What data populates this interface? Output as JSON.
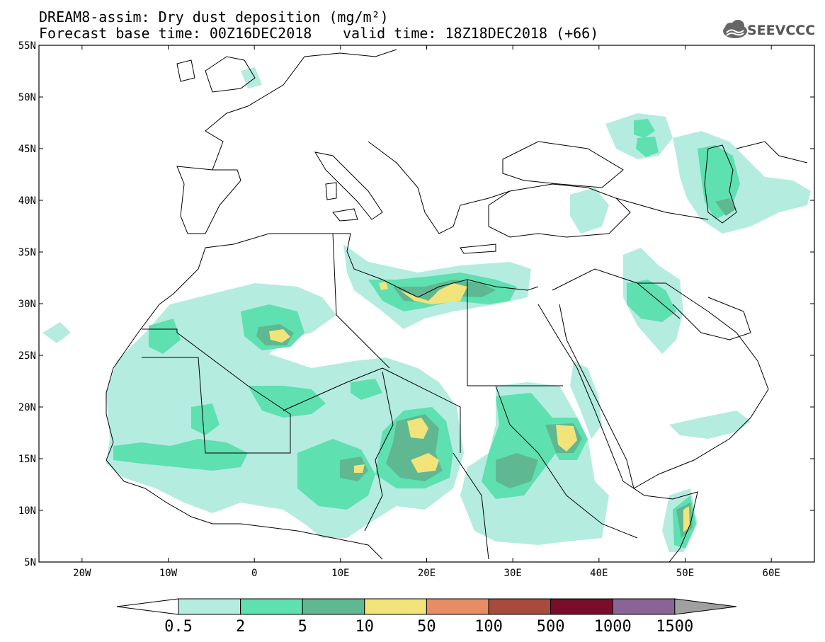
{
  "header": {
    "title_line1": "DREAM8-assim: Dry dust deposition (mg/m²)",
    "title_line2": "Forecast base time: 00Z16DEC2018",
    "title_line3": "valid time: 18Z18DEC2018 (+66)",
    "logo_text": "SEEVCCC"
  },
  "map": {
    "lat_labels": [
      "55N",
      "50N",
      "45N",
      "40N",
      "35N",
      "30N",
      "25N",
      "20N",
      "15N",
      "10N",
      "5N"
    ],
    "lon_labels": [
      "20W",
      "10W",
      "0",
      "10E",
      "20E",
      "30E",
      "40E",
      "50E",
      "60E"
    ],
    "extent": {
      "lon_min": -25,
      "lon_max": 65,
      "lat_min": 5,
      "lat_max": 55
    }
  },
  "colorbar": {
    "levels": [
      "0.5",
      "2",
      "5",
      "10",
      "50",
      "100",
      "500",
      "1000",
      "1500"
    ],
    "colors": [
      "#b4ece0",
      "#5ee0b0",
      "#5fb892",
      "#f2e47a",
      "#e88c64",
      "#a84a3c",
      "#7a0c2c",
      "#8a6496",
      "#a0a0a0"
    ],
    "under_color": "#ffffff",
    "over_color": "#a0a0a0"
  }
}
